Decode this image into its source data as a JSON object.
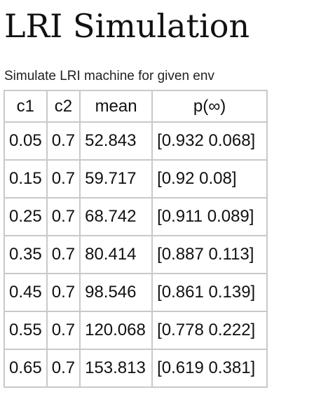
{
  "page": {
    "title": "LRI Simulation",
    "caption": "Simulate LRI machine for given env"
  },
  "table": {
    "headers": [
      "c1",
      "c2",
      "mean",
      "p(∞)"
    ],
    "rows": [
      [
        "0.05",
        "0.7",
        "52.843",
        "[0.932 0.068]"
      ],
      [
        "0.15",
        "0.7",
        "59.717",
        "[0.92 0.08]"
      ],
      [
        "0.25",
        "0.7",
        "68.742",
        "[0.911 0.089]"
      ],
      [
        "0.35",
        "0.7",
        "80.414",
        "[0.887 0.113]"
      ],
      [
        "0.45",
        "0.7",
        "98.546",
        "[0.861 0.139]"
      ],
      [
        "0.55",
        "0.7",
        "120.068",
        "[0.778 0.222]"
      ],
      [
        "0.65",
        "0.7",
        "153.813",
        "[0.619 0.381]"
      ]
    ]
  }
}
